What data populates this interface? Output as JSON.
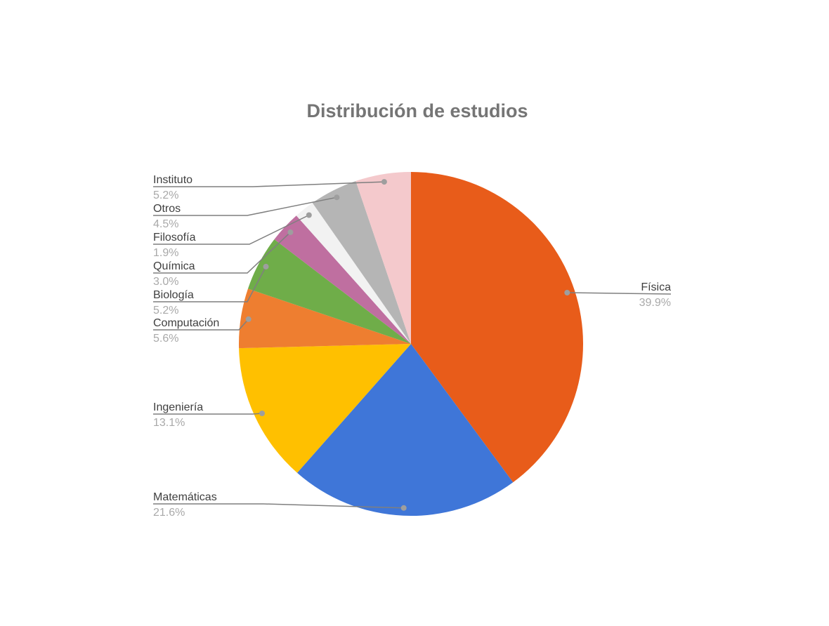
{
  "title": "Distribución de estudios",
  "chart_data": {
    "type": "pie",
    "title": "Distribución de estudios",
    "start_angle_deg": 0,
    "direction": "clockwise",
    "slices": [
      {
        "label": "Física",
        "value": 39.9,
        "pct_label": "39.9%",
        "color": "#E85C1A"
      },
      {
        "label": "Matemáticas",
        "value": 21.6,
        "pct_label": "21.6%",
        "color": "#3F76D8"
      },
      {
        "label": "Ingeniería",
        "value": 13.1,
        "pct_label": "13.1%",
        "color": "#FFC000"
      },
      {
        "label": "Computación",
        "value": 5.6,
        "pct_label": "5.6%",
        "color": "#EE7E30"
      },
      {
        "label": "Biología",
        "value": 5.2,
        "pct_label": "5.2%",
        "color": "#6FAD49"
      },
      {
        "label": "Química",
        "value": 3.0,
        "pct_label": "3.0%",
        "color": "#BF6FA0"
      },
      {
        "label": "Filosofía",
        "value": 1.9,
        "pct_label": "1.9%",
        "color": "#F2F2F2"
      },
      {
        "label": "Otros",
        "value": 4.5,
        "pct_label": "4.5%",
        "color": "#B5B5B5"
      },
      {
        "label": "Instituto",
        "value": 5.2,
        "pct_label": "5.2%",
        "color": "#F4C9CC"
      }
    ],
    "legend": "none",
    "labels_style": "callout-with-leader-lines"
  },
  "colors": {
    "background": "#FFFFFF",
    "title_text": "#757575",
    "label_name_text": "#3F3F3F",
    "label_pct_text": "#A9A9A9",
    "leader_line": "#7F7F7F",
    "leader_dot": "#9E9E9E"
  }
}
